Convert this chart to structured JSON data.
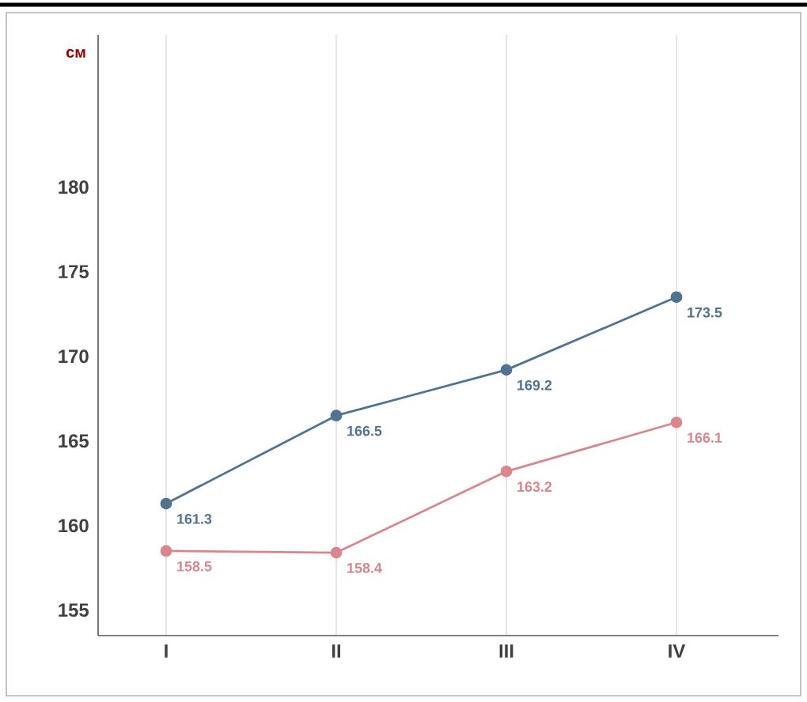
{
  "chart_data": {
    "type": "line",
    "ylabel": "см",
    "categories": [
      "I",
      "II",
      "III",
      "IV"
    ],
    "series": [
      {
        "color": "#4f7391",
        "values": [
          161.3,
          166.5,
          169.2,
          173.5
        ]
      },
      {
        "color": "#d9868c",
        "values": [
          158.5,
          158.4,
          163.2,
          166.1
        ]
      }
    ],
    "ylim": [
      153.5,
      189
    ],
    "yticks": [
      155,
      160,
      165,
      170,
      175,
      180
    ],
    "grid": "x",
    "marker": "circle",
    "data_labels": true
  }
}
